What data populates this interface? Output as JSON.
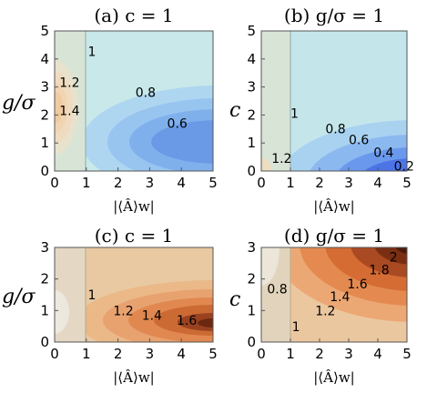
{
  "chart_data": [
    {
      "type": "contour",
      "title": "(a) c = 1",
      "xlabel": "|⟨Â⟩w|",
      "ylabel": "g/σ",
      "xlim": [
        0,
        5
      ],
      "ylim": [
        0,
        5
      ],
      "xticks": [
        "0",
        "1",
        "2",
        "3",
        "4",
        "5"
      ],
      "yticks": [
        "0",
        "1",
        "2",
        "3",
        "4",
        "5"
      ],
      "contour_labels": [
        {
          "text": "1",
          "x": 1.05,
          "y": 4.1
        },
        {
          "text": "1.2",
          "x": 0.15,
          "y": 3.0
        },
        {
          "text": "1.4",
          "x": 0.15,
          "y": 2.0
        },
        {
          "text": "0.8",
          "x": 2.55,
          "y": 2.65
        },
        {
          "text": "0.6",
          "x": 3.55,
          "y": 1.55
        }
      ],
      "colorscale": "blue"
    },
    {
      "type": "contour",
      "title": "(b) g/σ = 1",
      "xlabel": "|⟨Â⟩w|",
      "ylabel": "c",
      "xlim": [
        0,
        5
      ],
      "ylim": [
        0,
        5
      ],
      "xticks": [
        "0",
        "1",
        "2",
        "3",
        "4",
        "5"
      ],
      "yticks": [
        "0",
        "1",
        "2",
        "3",
        "4",
        "5"
      ],
      "contour_labels": [
        {
          "text": "1",
          "x": 1.0,
          "y": 1.9
        },
        {
          "text": "0.8",
          "x": 2.2,
          "y": 1.35
        },
        {
          "text": "0.6",
          "x": 3.0,
          "y": 0.95
        },
        {
          "text": "0.4",
          "x": 3.85,
          "y": 0.5
        },
        {
          "text": "0.2",
          "x": 4.55,
          "y": 0.02
        },
        {
          "text": "1.2",
          "x": 0.35,
          "y": 0.3
        }
      ],
      "colorscale": "blue"
    },
    {
      "type": "contour",
      "title": "(c) c = 1",
      "xlabel": "|⟨Â⟩w|",
      "ylabel": "g/σ",
      "xlim": [
        0,
        5
      ],
      "ylim": [
        0,
        3
      ],
      "xticks": [
        "0",
        "1",
        "2",
        "3",
        "4",
        "5"
      ],
      "yticks": [
        "0",
        "1",
        "2",
        "3"
      ],
      "contour_labels": [
        {
          "text": "1",
          "x": 1.05,
          "y": 1.35
        },
        {
          "text": "1.2",
          "x": 1.85,
          "y": 0.85
        },
        {
          "text": "1.4",
          "x": 2.75,
          "y": 0.7
        },
        {
          "text": "1.6",
          "x": 3.85,
          "y": 0.55
        }
      ],
      "colorscale": "orange"
    },
    {
      "type": "contour",
      "title": "(d) g/σ = 1",
      "xlabel": "|⟨Â⟩w|",
      "ylabel": "c",
      "xlim": [
        0,
        5
      ],
      "ylim": [
        0,
        3
      ],
      "xticks": [
        "0",
        "1",
        "2",
        "3",
        "4",
        "5"
      ],
      "yticks": [
        "0",
        "1",
        "2",
        "3"
      ],
      "contour_labels": [
        {
          "text": "0.8",
          "x": 0.2,
          "y": 1.55
        },
        {
          "text": "1",
          "x": 1.05,
          "y": 0.35
        },
        {
          "text": "1.2",
          "x": 1.85,
          "y": 0.85
        },
        {
          "text": "1.4",
          "x": 2.35,
          "y": 1.3
        },
        {
          "text": "1.6",
          "x": 2.95,
          "y": 1.7
        },
        {
          "text": "1.8",
          "x": 3.7,
          "y": 2.15
        },
        {
          "text": "2",
          "x": 4.4,
          "y": 2.55
        }
      ],
      "colorscale": "orange"
    }
  ]
}
